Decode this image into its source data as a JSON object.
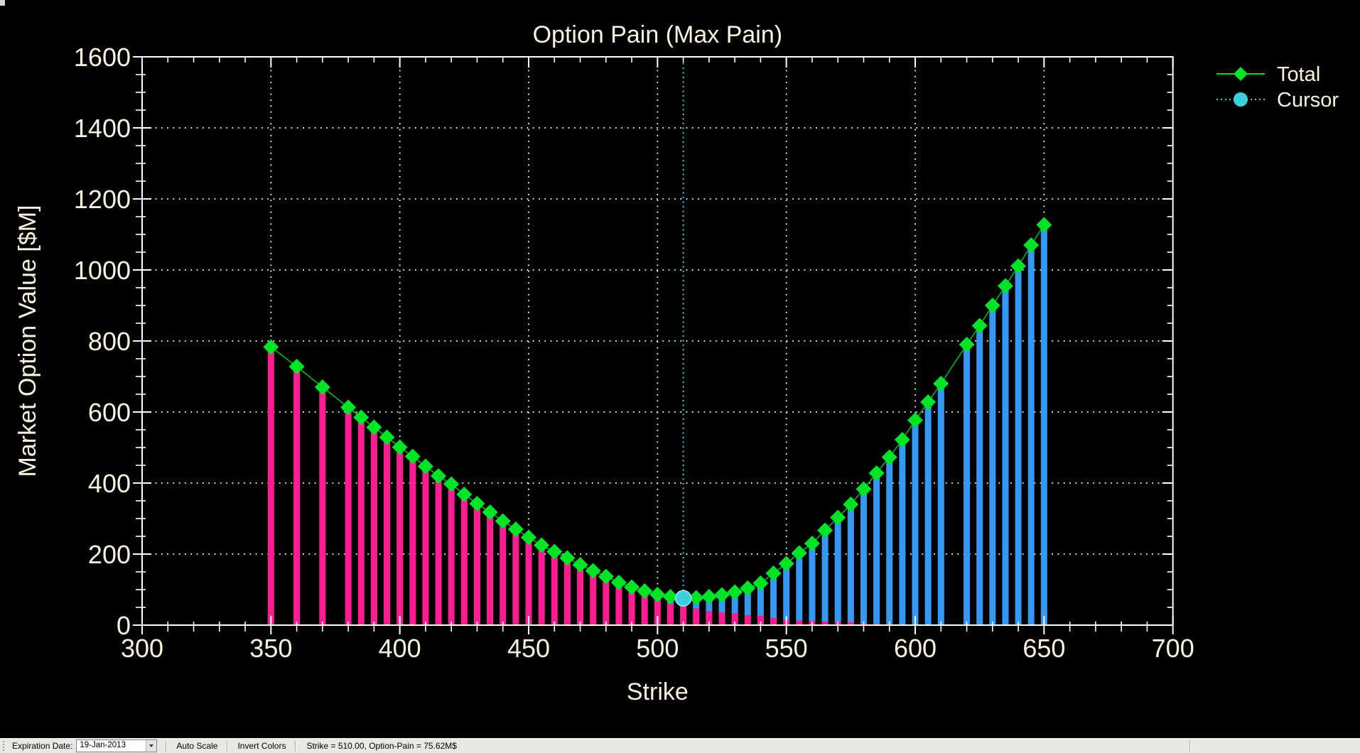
{
  "window": {
    "background": "#000000"
  },
  "chart": {
    "title": "Option Pain (Max Pain)",
    "x_label": "Strike",
    "y_label": "Market Option Value [$M]",
    "x_tick_labels": [
      "300",
      "350",
      "400",
      "450",
      "500",
      "550",
      "600",
      "650",
      "700"
    ],
    "y_tick_labels": [
      "0",
      "200",
      "400",
      "600",
      "800",
      "1000",
      "1200",
      "1400",
      "1600"
    ],
    "colors": {
      "background": "#000000",
      "axis": "#FFFFFF",
      "grid": "#FFFFFF",
      "text": "#FAF3E0",
      "put_bar_pink": "#FF1C92",
      "call_bar_blue": "#3598F4",
      "total_line_green": "#00C020",
      "total_marker_green": "#00E428",
      "cursor_cyan": "#3CCFE0",
      "cursor_line_cyan": "#55DDEE"
    },
    "legend": [
      {
        "label": "Total",
        "marker": "diamond",
        "line_style": "solid",
        "color": "#00E428"
      },
      {
        "label": "Cursor",
        "marker": "circle",
        "line_style": "dotted",
        "color": "#3CCFE0"
      }
    ]
  },
  "chart_data": {
    "type": "bar",
    "stacked": true,
    "title": "Option Pain (Max Pain)",
    "xlabel": "Strike",
    "ylabel": "Market Option Value [$M]",
    "xlim": [
      300,
      700
    ],
    "ylim": [
      0,
      1600
    ],
    "x_major_step": 50,
    "x_minor_step": 10,
    "y_major_step": 200,
    "y_minor_step": 50,
    "grid": "dotted at major ticks, both axes",
    "legend_position": "top-right outside plot",
    "categories": [
      350,
      360,
      370,
      380,
      385,
      390,
      395,
      400,
      405,
      410,
      415,
      420,
      425,
      430,
      435,
      440,
      445,
      450,
      455,
      460,
      465,
      470,
      475,
      480,
      485,
      490,
      495,
      500,
      505,
      510,
      515,
      520,
      525,
      530,
      535,
      540,
      545,
      550,
      555,
      560,
      565,
      570,
      575,
      580,
      585,
      590,
      595,
      600,
      605,
      610,
      620,
      625,
      630,
      635,
      640,
      645,
      650
    ],
    "series": [
      {
        "name": "put-value-bars-pink",
        "role": "lower segment of stacked bar",
        "color": "#FF1C92",
        "values": [
          780,
          725,
          666,
          609,
          580,
          552,
          524,
          495,
          469,
          441,
          413,
          390,
          361,
          334,
          309,
          284,
          260,
          237,
          214,
          195,
          177,
          158,
          140,
          123,
          106,
          92,
          82,
          70,
          61,
          55,
          47,
          40,
          36,
          33,
          28,
          26,
          20,
          15,
          13,
          12,
          10,
          9,
          8,
          4,
          3,
          3,
          2,
          2,
          2,
          1,
          1,
          1,
          1,
          1,
          1,
          0.5,
          0.5
        ]
      },
      {
        "name": "call-value-bars-blue",
        "role": "upper segment of stacked bar",
        "color": "#3598F4",
        "values": [
          3,
          3,
          4,
          4,
          5,
          5,
          5,
          6,
          6,
          6,
          7,
          7,
          7,
          8,
          9,
          9,
          10,
          10,
          11,
          12,
          12,
          12,
          13,
          14,
          14,
          15,
          14,
          16,
          19,
          20.62,
          30,
          40,
          49,
          60,
          76,
          92,
          126,
          158,
          190,
          218,
          257,
          294,
          332,
          379,
          425,
          470,
          520,
          575,
          626,
          679,
          789,
          842,
          899,
          954,
          1010,
          1069.5,
          1126.5
        ]
      },
      {
        "name": "Total",
        "role": "green line with diamond markers (= pink + blue)",
        "color": "#00E428",
        "values": [
          783,
          728,
          670,
          613,
          585,
          557,
          529,
          501,
          475,
          447,
          420,
          397,
          368,
          342,
          318,
          293,
          270,
          247,
          225,
          207,
          189,
          170,
          153,
          137,
          120,
          107,
          96,
          86,
          80,
          75.62,
          77,
          80,
          85,
          93,
          104,
          118,
          146,
          173,
          203,
          230,
          267,
          303,
          340,
          383,
          428,
          473,
          522,
          577,
          628,
          680,
          790,
          843,
          900,
          955,
          1011,
          1070,
          1127
        ]
      }
    ],
    "cursor": {
      "x": 510,
      "y": 75.62,
      "label": "Cursor",
      "style": "full-height dotted cyan vertical line with cyan circle marker"
    }
  },
  "statusbar": {
    "expiration_label": "Expiration Date:",
    "expiration_value": "19-Jan-2013",
    "auto_scale_label": "Auto Scale",
    "invert_colors_label": "Invert Colors",
    "status_text": "Strike = 510.00, Option-Pain = 75.62M$"
  }
}
